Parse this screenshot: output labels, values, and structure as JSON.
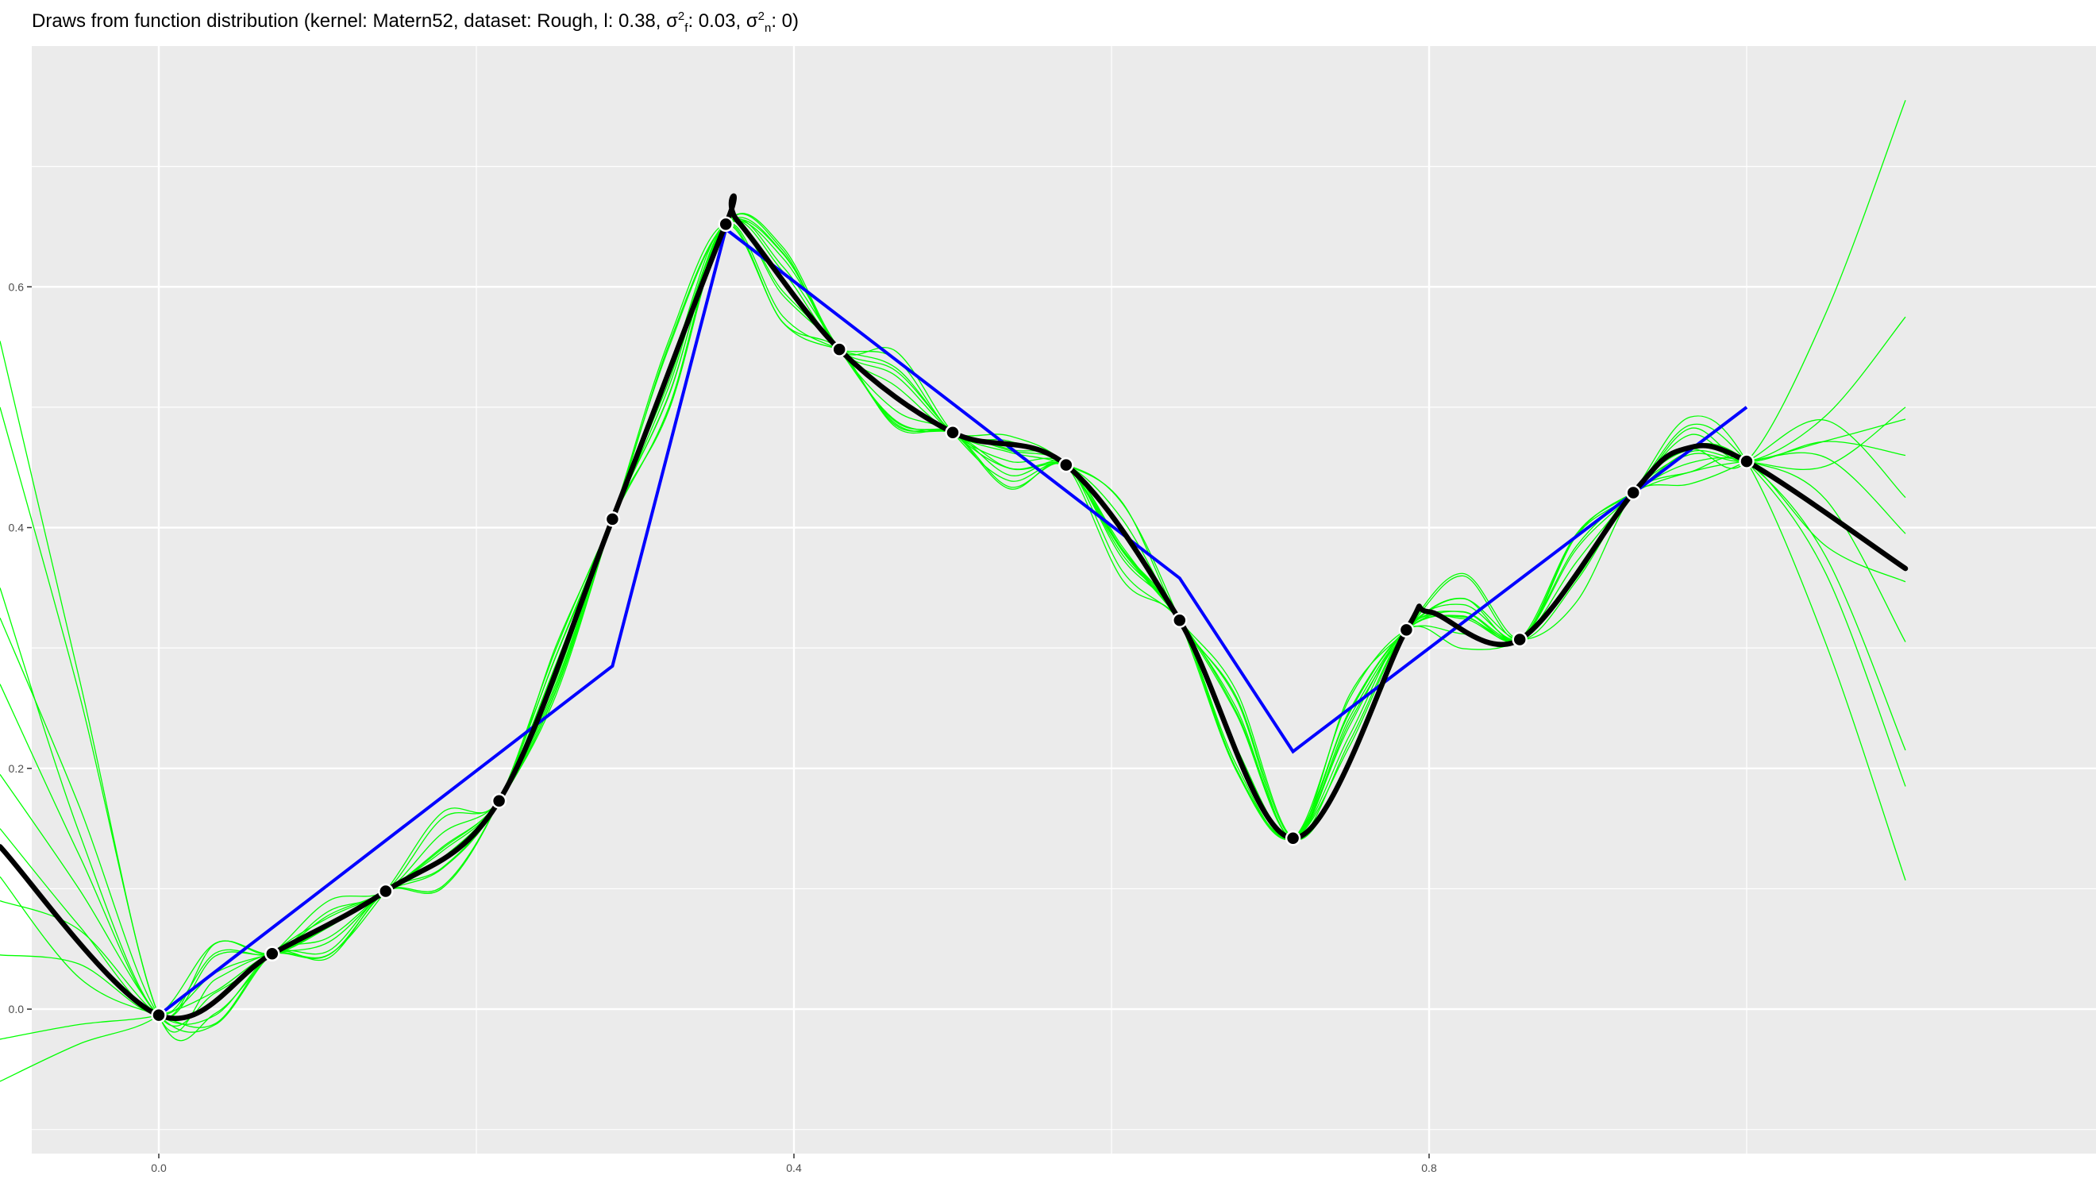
{
  "chart_data": {
    "type": "line",
    "title": {
      "prefix": "Draws from function distribution (kernel: ",
      "kernel": "Matern52",
      "dataset_label": ", dataset: ",
      "dataset": "Rough",
      "l_label": ", l: ",
      "l": "0.38",
      "sigma": "σ",
      "sigma_sup": "2",
      "sigma_f_sub": "f",
      "sigma_f_value": ": 0.03",
      "sigma_n_sub": "n",
      "sigma_n_value": ": 0)",
      "separator": ", "
    },
    "xlabel": "",
    "ylabel": "",
    "xlim": [
      -0.08,
      1.22
    ],
    "ylim": [
      -0.12,
      0.8
    ],
    "x_ticks": [
      {
        "value": 0.0,
        "label": "0.0"
      },
      {
        "value": 0.4,
        "label": "0.4"
      },
      {
        "value": 0.8,
        "label": "0.8"
      }
    ],
    "y_ticks": [
      {
        "value": 0.0,
        "label": "0.0"
      },
      {
        "value": 0.2,
        "label": "0.2"
      },
      {
        "value": 0.4,
        "label": "0.4"
      },
      {
        "value": 0.6,
        "label": "0.6"
      }
    ],
    "background": "#EBEBEB",
    "grid_color": "#FFFFFF",
    "colors": {
      "samples": "#00FF00",
      "mean": "#000000",
      "data_line": "#0000FF",
      "points_fill": "#000000",
      "points_stroke": "#FFFFFF"
    },
    "observations": {
      "x": [
        0.0,
        0.0714,
        0.1429,
        0.2143,
        0.2857,
        0.3571,
        0.4286,
        0.5,
        0.5714,
        0.6429,
        0.7143,
        0.7857,
        0.8571,
        0.9286,
        1.0
      ],
      "y": [
        -0.005,
        0.046,
        0.098,
        0.173,
        0.407,
        0.652,
        0.548,
        0.479,
        0.452,
        0.323,
        0.142,
        0.315,
        0.307,
        0.429,
        0.455
      ]
    },
    "blue_line": {
      "x": [
        0.0,
        0.2857,
        0.3571,
        0.6429,
        0.7143,
        1.0
      ],
      "y": [
        -0.005,
        0.285,
        0.648,
        0.358,
        0.214,
        0.5
      ]
    },
    "mean_left_end": {
      "x": -0.1,
      "y": 0.135
    },
    "mean_right_end": {
      "x": 1.1,
      "y": 0.366
    },
    "mean_peaks": [
      {
        "x": 0.365,
        "y": 0.654
      },
      {
        "x": 0.8,
        "y": 0.33
      },
      {
        "x": 0.96,
        "y": 0.465
      }
    ],
    "samples": {
      "count": 12,
      "left_ends": [
        0.555,
        0.5,
        0.35,
        0.325,
        0.27,
        0.195,
        0.15,
        0.11,
        0.09,
        0.045,
        -0.025,
        -0.06
      ],
      "right_ends": [
        0.755,
        0.575,
        0.5,
        0.49,
        0.46,
        0.425,
        0.395,
        0.355,
        0.305,
        0.215,
        0.185,
        0.107
      ]
    }
  }
}
